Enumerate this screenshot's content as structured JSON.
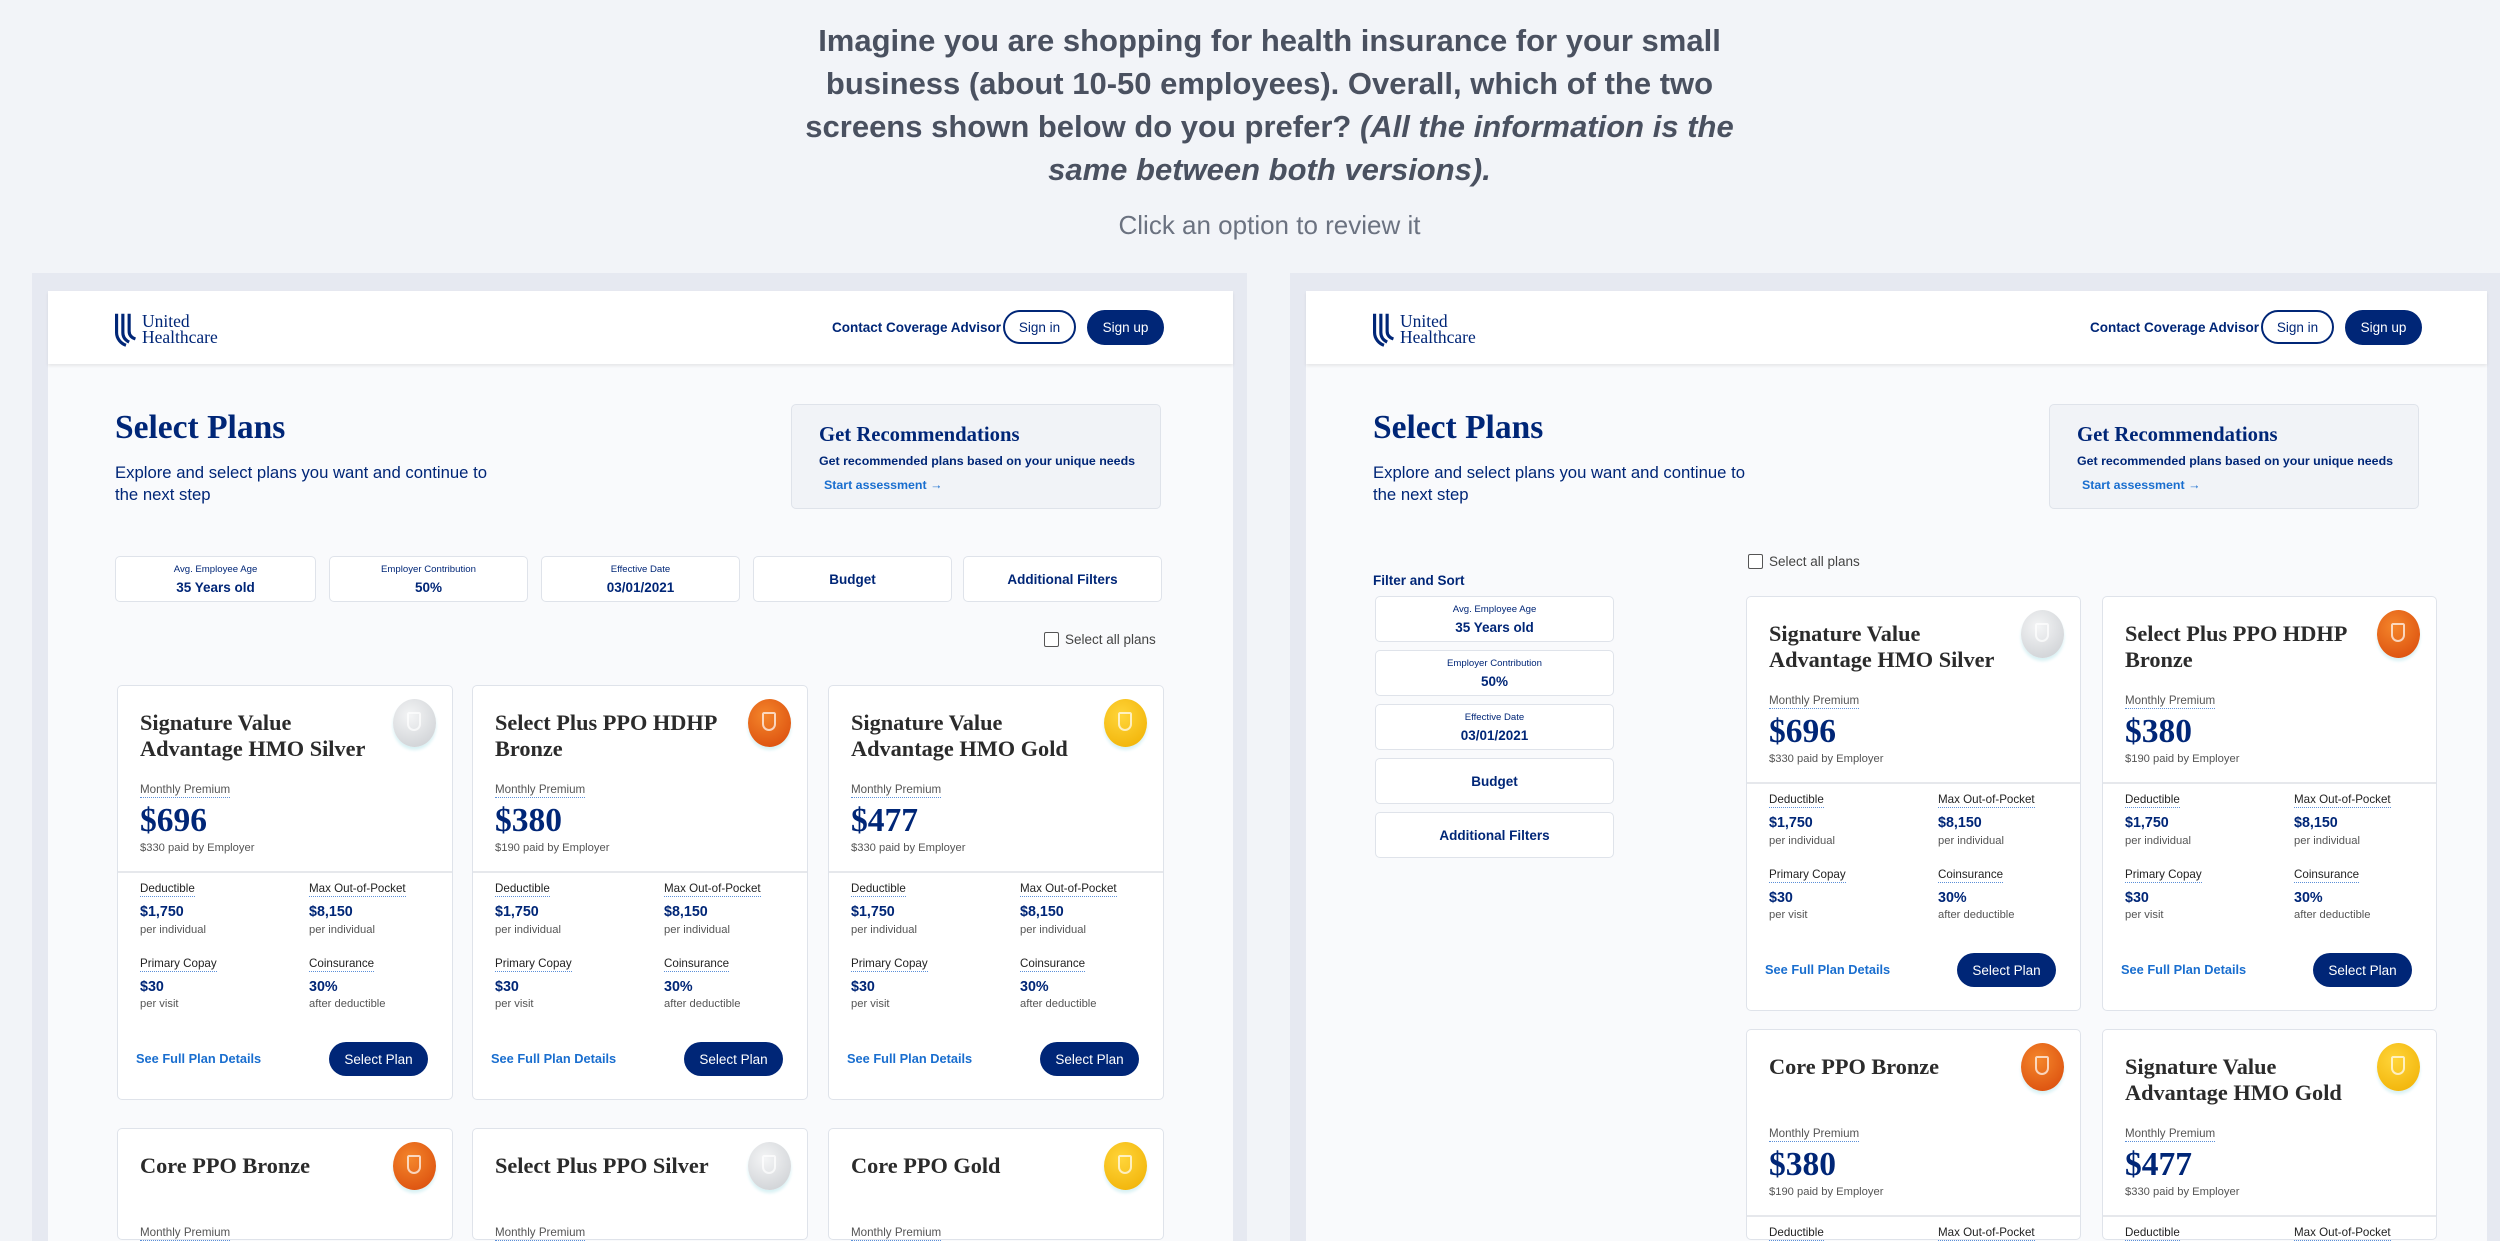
{
  "survey": {
    "question": "Imagine you are shopping for health insurance for your small business (about 10-50 employees). Overall, which of the two screens shown below do you prefer?",
    "question_italic": "(All the information is the same between both versions).",
    "hint": "Click an option to review it"
  },
  "nav": {
    "logo_line1": "United",
    "logo_line2": "Healthcare",
    "contact": "Contact Coverage Advisor",
    "sign_in": "Sign in",
    "sign_up": "Sign up",
    "brand_color": "#002677"
  },
  "page": {
    "title": "Select Plans",
    "subtitle": "Explore and select plans you want and continue to the next step",
    "select_all": "Select all plans",
    "filter_sort": "Filter and Sort"
  },
  "recommend": {
    "title": "Get Recommendations",
    "text": "Get recommended plans based on your unique needs",
    "link": "Start assessment →"
  },
  "filters": {
    "age_label": "Avg. Employee Age",
    "age_value": "35 Years old",
    "contrib_label": "Employer Contribution",
    "contrib_value": "50%",
    "date_label": "Effective Date",
    "date_value": "03/01/2021",
    "budget": "Budget",
    "additional": "Additional Filters"
  },
  "labels": {
    "monthly_premium": "Monthly Premium",
    "deductible": "Deductible",
    "max_oop": "Max Out-of-Pocket",
    "copay": "Primary Copay",
    "coinsurance": "Coinsurance",
    "details": "See Full Plan Details",
    "select": "Select Plan"
  },
  "left_plans": [
    {
      "name": "Signature Value Advantage HMO Silver",
      "tier": "silver",
      "premium": "$696",
      "paid": "$330 paid by Employer",
      "deductible": "$1,750",
      "deductible_sub": "per individual",
      "max_oop": "$8,150",
      "max_oop_sub": "per individual",
      "copay": "$30",
      "copay_sub": "per visit",
      "coinsurance": "30%",
      "coinsurance_sub": "after deductible"
    },
    {
      "name": "Select Plus PPO HDHP Bronze",
      "tier": "bronze",
      "premium": "$380",
      "paid": "$190 paid by Employer",
      "deductible": "$1,750",
      "deductible_sub": "per individual",
      "max_oop": "$8,150",
      "max_oop_sub": "per individual",
      "copay": "$30",
      "copay_sub": "per visit",
      "coinsurance": "30%",
      "coinsurance_sub": "after deductible"
    },
    {
      "name": "Signature Value Advantage HMO Gold",
      "tier": "gold",
      "premium": "$477",
      "paid": "$330 paid by Employer",
      "deductible": "$1,750",
      "deductible_sub": "per individual",
      "max_oop": "$8,150",
      "max_oop_sub": "per individual",
      "copay": "$30",
      "copay_sub": "per visit",
      "coinsurance": "30%",
      "coinsurance_sub": "after deductible"
    },
    {
      "name": "Core PPO Bronze",
      "tier": "bronze"
    },
    {
      "name": "Select Plus PPO Silver",
      "tier": "silver"
    },
    {
      "name": "Core PPO Gold",
      "tier": "gold"
    }
  ],
  "right_plans": [
    {
      "name": "Signature Value Advantage HMO Silver",
      "tier": "silver",
      "premium": "$696",
      "paid": "$330 paid by Employer",
      "deductible": "$1,750",
      "deductible_sub": "per individual",
      "max_oop": "$8,150",
      "max_oop_sub": "per individual",
      "copay": "$30",
      "copay_sub": "per visit",
      "coinsurance": "30%",
      "coinsurance_sub": "after deductible"
    },
    {
      "name": "Select Plus PPO HDHP Bronze",
      "tier": "bronze",
      "premium": "$380",
      "paid": "$190 paid by Employer",
      "deductible": "$1,750",
      "deductible_sub": "per individual",
      "max_oop": "$8,150",
      "max_oop_sub": "per individual",
      "copay": "$30",
      "copay_sub": "per visit",
      "coinsurance": "30%",
      "coinsurance_sub": "after deductible"
    },
    {
      "name": "Core PPO Bronze",
      "tier": "bronze",
      "premium": "$380",
      "paid": "$190 paid by Employer"
    },
    {
      "name": "Signature Value Advantage HMO Gold",
      "tier": "gold",
      "premium": "$477",
      "paid": "$330 paid by Employer"
    }
  ]
}
